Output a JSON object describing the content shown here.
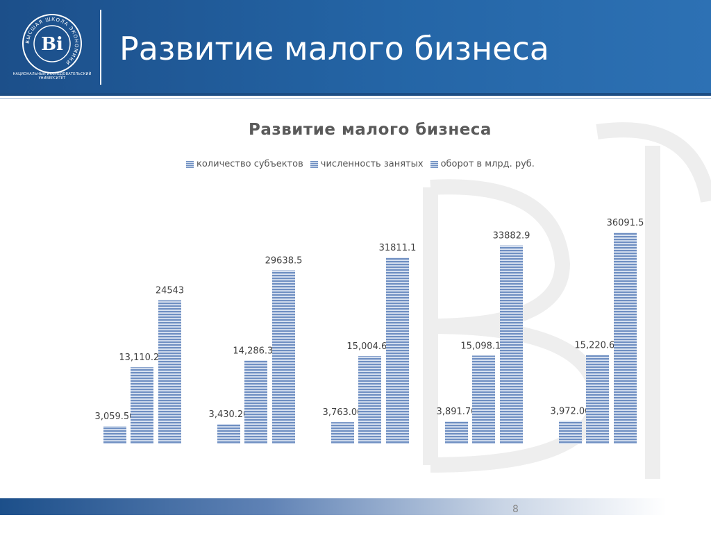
{
  "header": {
    "title": "Развитие малого бизнеса",
    "logo_caption": "НАЦИОНАЛЬНЫЙ ИССЛЕДОВАТЕЛЬСКИЙ УНИВЕРСИТЕТ",
    "logo_ring_text": "ВЫСШАЯ ШКОЛА ЭКОНОМИКИ",
    "logo_monogram": "Ві"
  },
  "footer": {
    "page_number": "8"
  },
  "colors": {
    "header": "#1f5797",
    "bar": "#6f8fc2",
    "bar_light": "#dbe4f2",
    "title_text": "#5a5a5a"
  },
  "chart_data": {
    "type": "bar",
    "title": "Развитие малого бизнеса",
    "legend_position": "top",
    "grid": false,
    "ylim": [
      0,
      40000
    ],
    "series": [
      {
        "name": "количество субъектов",
        "values": [
          3059.5,
          3430.2,
          3763.0,
          3891.7,
          3972.0
        ],
        "labels": [
          "3,059.50",
          "3,430.20",
          "3,763.00",
          "3,891.70",
          "3,972.00"
        ]
      },
      {
        "name": "численность занятых",
        "values": [
          13110.2,
          14286.3,
          15004.6,
          15098.1,
          15220.6
        ],
        "labels": [
          "13,110.20",
          "14,286.30",
          "15,004.60",
          "15,098.10",
          "15,220.60"
        ]
      },
      {
        "name": "оборот в млрд. руб.",
        "values": [
          24543,
          29638.5,
          31811.1,
          33882.9,
          36091.5
        ],
        "labels": [
          "24543",
          "29638.5",
          "31811.1",
          "33882.9",
          "36091.5"
        ]
      }
    ]
  }
}
